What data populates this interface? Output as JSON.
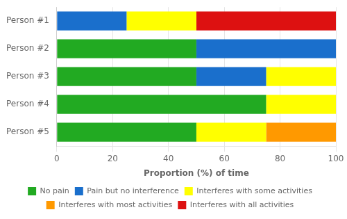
{
  "chart_data": {
    "type": "bar",
    "orientation": "horizontal",
    "stacked": true,
    "categories": [
      "Person #1",
      "Person #2",
      "Person #3",
      "Person #4",
      "Person #5"
    ],
    "series": [
      {
        "name": "No pain",
        "color": "#22aa22",
        "values": [
          0,
          50,
          50,
          75,
          50
        ]
      },
      {
        "name": "Pain but no interference",
        "color": "#1a6fcc",
        "values": [
          25,
          50,
          25,
          0,
          0
        ]
      },
      {
        "name": "Interferes with some activities",
        "color": "#ffff00",
        "values": [
          25,
          0,
          25,
          25,
          25
        ]
      },
      {
        "name": "Interferes with most activities",
        "color": "#ff9900",
        "values": [
          0,
          0,
          0,
          0,
          25
        ]
      },
      {
        "name": "Interferes with all activities",
        "color": "#dd1111",
        "values": [
          50,
          0,
          0,
          0,
          0
        ]
      }
    ],
    "xlabel": "Proportion (%) of time",
    "xlim": [
      0,
      100
    ],
    "xticks": [
      0,
      20,
      40,
      60,
      80,
      100
    ],
    "grid": true,
    "legend": "bottom"
  }
}
